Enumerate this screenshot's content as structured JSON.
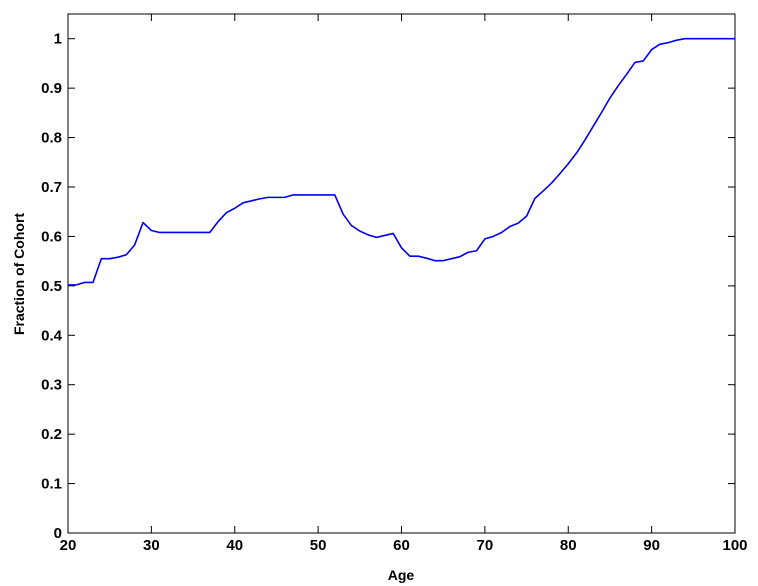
{
  "chart_data": {
    "type": "line",
    "title": "",
    "xlabel": "Age",
    "ylabel": "Fraction of Cohort",
    "xlim": [
      20,
      100
    ],
    "ylim": [
      0,
      1.05
    ],
    "xticks": [
      20,
      30,
      40,
      50,
      60,
      70,
      80,
      90,
      100
    ],
    "yticks": [
      0,
      0.1,
      0.2,
      0.3,
      0.4,
      0.5,
      0.6,
      0.7,
      0.8,
      0.9,
      1
    ],
    "xtick_labels": [
      "20",
      "30",
      "40",
      "50",
      "60",
      "70",
      "80",
      "90",
      "100"
    ],
    "ytick_labels": [
      "0",
      "0.1",
      "0.2",
      "0.3",
      "0.4",
      "0.5",
      "0.6",
      "0.7",
      "0.8",
      "0.9",
      "1"
    ],
    "grid": false,
    "legend": "none",
    "line_color": "#0000ee",
    "series": [
      {
        "x": [
          20,
          21,
          22,
          23,
          24,
          25,
          26,
          27,
          28,
          29,
          30,
          31,
          32,
          33,
          34,
          35,
          36,
          37,
          38,
          39,
          40,
          41,
          42,
          43,
          44,
          45,
          46,
          47,
          48,
          49,
          50,
          51,
          52,
          53,
          54,
          55,
          56,
          57,
          58,
          59,
          60,
          61,
          62,
          63,
          64,
          65,
          66,
          67,
          68,
          69,
          70,
          71,
          72,
          73,
          74,
          75,
          76,
          77,
          78,
          79,
          80,
          81,
          82,
          83,
          84,
          85,
          86,
          87,
          88,
          89,
          90,
          91,
          92,
          93,
          94,
          95,
          96,
          97,
          98,
          99,
          100
        ],
        "y": [
          0.502,
          0.502,
          0.507,
          0.507,
          0.555,
          0.555,
          0.558,
          0.563,
          0.583,
          0.628,
          0.612,
          0.608,
          0.608,
          0.608,
          0.608,
          0.608,
          0.608,
          0.608,
          0.63,
          0.648,
          0.657,
          0.668,
          0.672,
          0.676,
          0.679,
          0.679,
          0.679,
          0.684,
          0.684,
          0.684,
          0.684,
          0.684,
          0.684,
          0.645,
          0.622,
          0.611,
          0.603,
          0.598,
          0.602,
          0.606,
          0.577,
          0.56,
          0.56,
          0.556,
          0.551,
          0.551,
          0.555,
          0.559,
          0.568,
          0.571,
          0.595,
          0.6,
          0.608,
          0.62,
          0.627,
          0.641,
          0.677,
          0.692,
          0.708,
          0.727,
          0.747,
          0.769,
          0.795,
          0.823,
          0.851,
          0.88,
          0.905,
          0.928,
          0.952,
          0.955,
          0.978,
          0.989,
          0.992,
          0.997,
          1.0,
          1.0,
          1.0,
          1.0,
          1.0,
          1.0,
          1.0
        ]
      }
    ]
  }
}
